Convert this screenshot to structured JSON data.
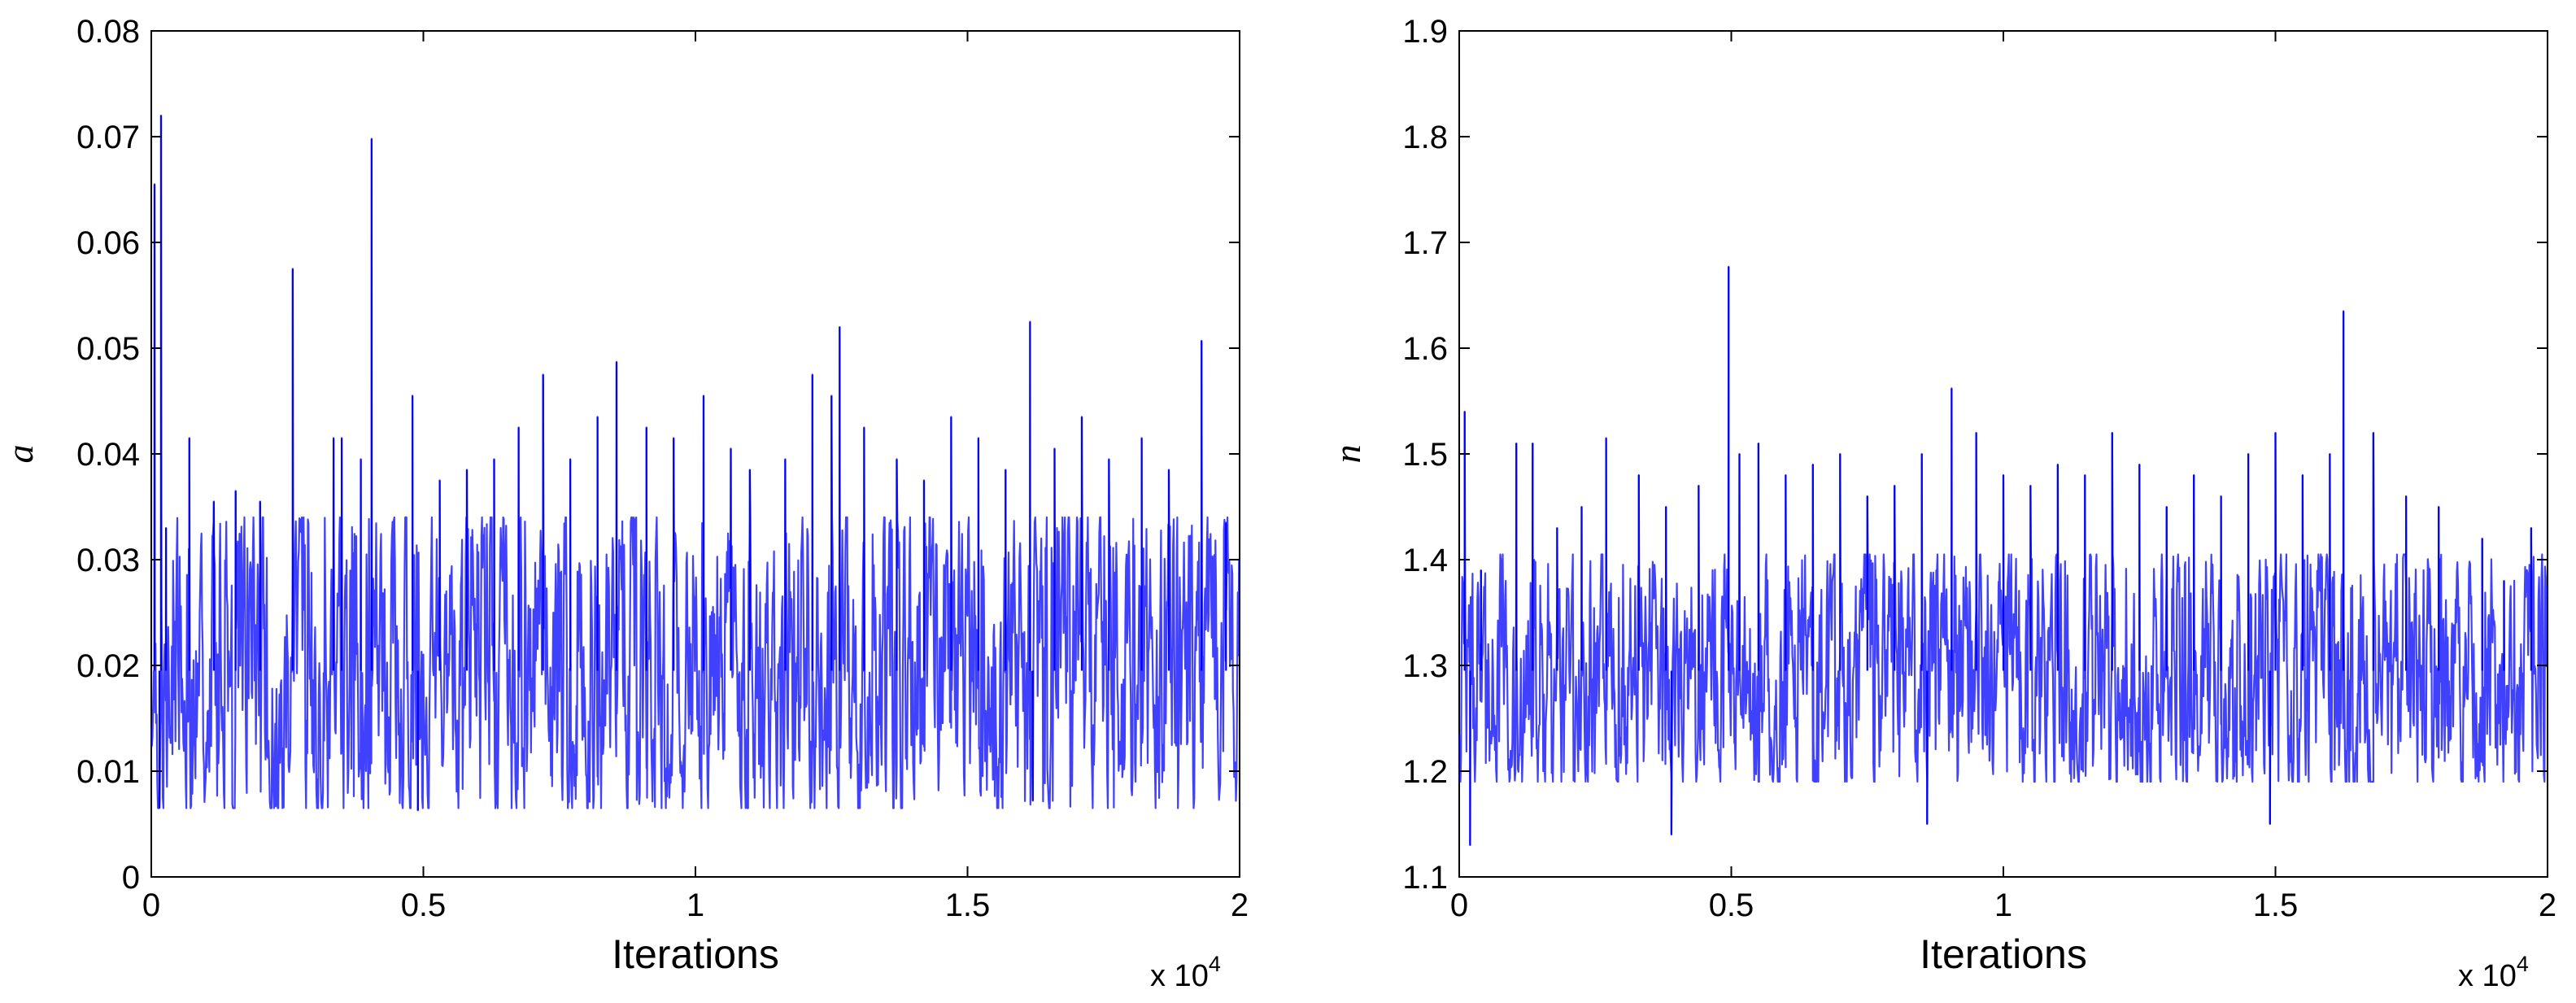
{
  "chart_data": [
    {
      "type": "line",
      "xlabel": "Iterations",
      "ylabel": "a",
      "xlim": [
        0,
        20000
      ],
      "ylim": [
        0,
        0.08
      ],
      "x_multiplier_label": {
        "base": "x 10",
        "exponent": "4"
      },
      "xticks": [
        0,
        5000,
        10000,
        15000,
        20000
      ],
      "xtick_labels": [
        "0",
        "0.5",
        "1",
        "1.5",
        "2"
      ],
      "yticks": [
        0,
        0.01,
        0.02,
        0.03,
        0.04,
        0.05,
        0.06,
        0.07,
        0.08
      ],
      "ytick_labels": [
        "0",
        "0.01",
        "0.02",
        "0.03",
        "0.04",
        "0.05",
        "0.06",
        "0.07",
        "0.08"
      ],
      "trace": {
        "mean": 0.0195,
        "low": 0.0065,
        "typical_high": 0.034
      },
      "peaks": [
        [
          60,
          0.0655
        ],
        [
          180,
          0.072
        ],
        [
          270,
          0.033
        ],
        [
          700,
          0.0415
        ],
        [
          1150,
          0.0355
        ],
        [
          1550,
          0.0365
        ],
        [
          2000,
          0.0355
        ],
        [
          2600,
          0.0575
        ],
        [
          3350,
          0.0415
        ],
        [
          3500,
          0.0415
        ],
        [
          3850,
          0.0395
        ],
        [
          4050,
          0.0698
        ],
        [
          4800,
          0.0455
        ],
        [
          5300,
          0.0375
        ],
        [
          5800,
          0.0385
        ],
        [
          6300,
          0.0395
        ],
        [
          6750,
          0.0425
        ],
        [
          7200,
          0.0475
        ],
        [
          7700,
          0.0395
        ],
        [
          8200,
          0.0435
        ],
        [
          8550,
          0.0487
        ],
        [
          9100,
          0.0425
        ],
        [
          9600,
          0.0415
        ],
        [
          10150,
          0.0455
        ],
        [
          10650,
          0.0405
        ],
        [
          11000,
          0.0385
        ],
        [
          11650,
          0.0395
        ],
        [
          12150,
          0.0475
        ],
        [
          12500,
          0.0455
        ],
        [
          12650,
          0.052
        ],
        [
          13100,
          0.0425
        ],
        [
          13700,
          0.0395
        ],
        [
          14200,
          0.0375
        ],
        [
          14700,
          0.0435
        ],
        [
          15200,
          0.0415
        ],
        [
          15700,
          0.0385
        ],
        [
          16150,
          0.0525
        ],
        [
          16600,
          0.0405
        ],
        [
          17100,
          0.0435
        ],
        [
          17600,
          0.0395
        ],
        [
          18200,
          0.0415
        ],
        [
          18700,
          0.0385
        ],
        [
          19300,
          0.0507
        ],
        [
          19750,
          0.0335
        ]
      ],
      "dips": [
        [
          150,
          0.0065
        ],
        [
          4900,
          0.0063
        ],
        [
          16200,
          0.0072
        ]
      ],
      "color": "#0000ff"
    },
    {
      "type": "line",
      "xlabel": "Iterations",
      "ylabel": "n",
      "xlim": [
        0,
        20000
      ],
      "ylim": [
        1.1,
        1.9
      ],
      "x_multiplier_label": {
        "base": "x 10",
        "exponent": "4"
      },
      "xticks": [
        0,
        5000,
        10000,
        15000,
        20000
      ],
      "xtick_labels": [
        "0",
        "0.5",
        "1",
        "1.5",
        "2"
      ],
      "yticks": [
        1.1,
        1.2,
        1.3,
        1.4,
        1.5,
        1.6,
        1.7,
        1.8,
        1.9
      ],
      "ytick_labels": [
        "1.1",
        "1.2",
        "1.3",
        "1.4",
        "1.5",
        "1.6",
        "1.7",
        "1.8",
        "1.9"
      ],
      "trace": {
        "mean": 1.295,
        "low": 1.19,
        "typical_high": 1.405
      },
      "peaks": [
        [
          100,
          1.54
        ],
        [
          400,
          1.39
        ],
        [
          1050,
          1.51
        ],
        [
          1350,
          1.51
        ],
        [
          1800,
          1.43
        ],
        [
          2250,
          1.45
        ],
        [
          2700,
          1.515
        ],
        [
          3300,
          1.48
        ],
        [
          3800,
          1.45
        ],
        [
          4400,
          1.47
        ],
        [
          4950,
          1.677
        ],
        [
          5150,
          1.5
        ],
        [
          5500,
          1.51
        ],
        [
          6000,
          1.48
        ],
        [
          6500,
          1.49
        ],
        [
          7000,
          1.5
        ],
        [
          7500,
          1.46
        ],
        [
          8000,
          1.47
        ],
        [
          8500,
          1.5
        ],
        [
          9050,
          1.562
        ],
        [
          9500,
          1.52
        ],
        [
          10000,
          1.48
        ],
        [
          10500,
          1.47
        ],
        [
          11000,
          1.49
        ],
        [
          11500,
          1.48
        ],
        [
          12000,
          1.52
        ],
        [
          12500,
          1.49
        ],
        [
          13000,
          1.45
        ],
        [
          13500,
          1.48
        ],
        [
          14000,
          1.46
        ],
        [
          14500,
          1.5
        ],
        [
          15000,
          1.52
        ],
        [
          15500,
          1.48
        ],
        [
          16000,
          1.5
        ],
        [
          16250,
          1.635
        ],
        [
          16800,
          1.52
        ],
        [
          17400,
          1.46
        ],
        [
          18000,
          1.45
        ],
        [
          18800,
          1.42
        ],
        [
          19200,
          1.38
        ],
        [
          19700,
          1.43
        ]
      ],
      "dips": [
        [
          200,
          1.13
        ],
        [
          3900,
          1.14
        ],
        [
          8600,
          1.15
        ],
        [
          14900,
          1.15
        ]
      ],
      "color": "#0000ff"
    }
  ]
}
